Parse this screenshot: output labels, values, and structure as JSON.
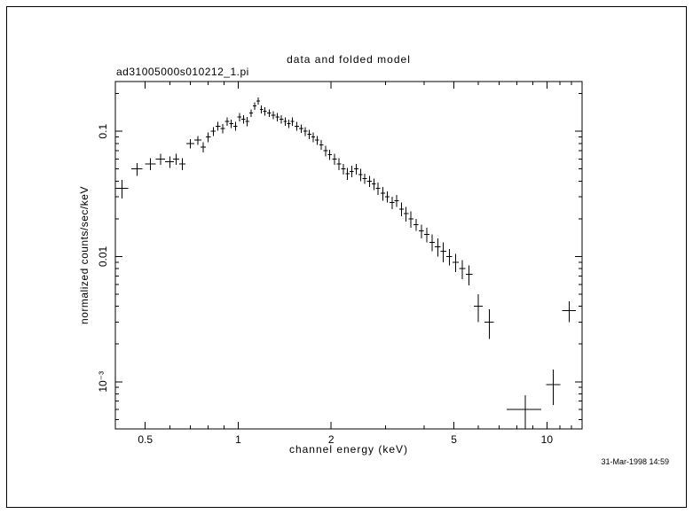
{
  "window": {
    "background": "#ffffff",
    "frame_color": "#000000",
    "ink_color": "#000000"
  },
  "chart": {
    "title": "data and folded model",
    "filename": "ad31005000s010212_1.pi",
    "xlabel": "channel energy (keV)",
    "ylabel": "normalized counts/sec/keV",
    "timestamp": "31-Mar-1998 14:59"
  },
  "chart_data": {
    "type": "scatter",
    "marker": "cross-with-error-bars",
    "color": "#000000",
    "x_scale": "log",
    "y_scale": "log",
    "xlim": [
      0.4,
      13
    ],
    "ylim": [
      0.00042,
      0.25
    ],
    "grid": false,
    "legend": "none",
    "title": "data and folded model",
    "xlabel": "channel energy (keV)",
    "ylabel": "normalized counts/sec/keV",
    "x_ticks": [
      {
        "value": 0.5,
        "label": "0.5"
      },
      {
        "value": 1,
        "label": "1"
      },
      {
        "value": 2,
        "label": "2"
      },
      {
        "value": 5,
        "label": "5"
      },
      {
        "value": 10,
        "label": "10"
      }
    ],
    "x_minor_ticks": [
      0.6,
      0.7,
      0.8,
      0.9,
      3,
      4,
      6,
      7,
      8,
      9,
      11,
      12
    ],
    "y_ticks": [
      {
        "value": 0.001,
        "label": "10⁻³"
      },
      {
        "value": 0.01,
        "label": "0.01"
      },
      {
        "value": 0.1,
        "label": "0.1"
      }
    ],
    "y_minor_ticks": [
      0.0005,
      0.0006,
      0.0007,
      0.0008,
      0.0009,
      0.002,
      0.003,
      0.004,
      0.005,
      0.006,
      0.007,
      0.008,
      0.009,
      0.02,
      0.03,
      0.04,
      0.05,
      0.06,
      0.07,
      0.08,
      0.09,
      0.2
    ],
    "series": [
      {
        "name": "ad31005000s010212_1.pi",
        "point_format": [
          "energy_keV",
          "energy_halfwidth_keV",
          "rate_counts_per_sec_keV",
          "rate_error"
        ],
        "points": [
          [
            0.42,
            0.02,
            0.035,
            0.006
          ],
          [
            0.47,
            0.02,
            0.05,
            0.006
          ],
          [
            0.52,
            0.02,
            0.055,
            0.006
          ],
          [
            0.56,
            0.02,
            0.06,
            0.006
          ],
          [
            0.6,
            0.02,
            0.057,
            0.006
          ],
          [
            0.63,
            0.015,
            0.06,
            0.006
          ],
          [
            0.66,
            0.015,
            0.055,
            0.006
          ],
          [
            0.7,
            0.02,
            0.08,
            0.007
          ],
          [
            0.74,
            0.02,
            0.085,
            0.007
          ],
          [
            0.77,
            0.015,
            0.075,
            0.007
          ],
          [
            0.8,
            0.015,
            0.09,
            0.008
          ],
          [
            0.83,
            0.015,
            0.1,
            0.008
          ],
          [
            0.86,
            0.015,
            0.11,
            0.009
          ],
          [
            0.89,
            0.015,
            0.105,
            0.009
          ],
          [
            0.92,
            0.015,
            0.12,
            0.009
          ],
          [
            0.95,
            0.015,
            0.115,
            0.009
          ],
          [
            0.98,
            0.015,
            0.11,
            0.009
          ],
          [
            1.01,
            0.015,
            0.13,
            0.01
          ],
          [
            1.04,
            0.015,
            0.125,
            0.01
          ],
          [
            1.07,
            0.015,
            0.12,
            0.01
          ],
          [
            1.1,
            0.015,
            0.14,
            0.01
          ],
          [
            1.13,
            0.015,
            0.16,
            0.011
          ],
          [
            1.16,
            0.015,
            0.175,
            0.012
          ],
          [
            1.19,
            0.015,
            0.15,
            0.011
          ],
          [
            1.22,
            0.015,
            0.145,
            0.011
          ],
          [
            1.26,
            0.02,
            0.14,
            0.01
          ],
          [
            1.3,
            0.02,
            0.135,
            0.01
          ],
          [
            1.34,
            0.02,
            0.13,
            0.01
          ],
          [
            1.38,
            0.02,
            0.125,
            0.01
          ],
          [
            1.42,
            0.02,
            0.12,
            0.009
          ],
          [
            1.46,
            0.02,
            0.115,
            0.009
          ],
          [
            1.5,
            0.02,
            0.12,
            0.009
          ],
          [
            1.55,
            0.025,
            0.11,
            0.009
          ],
          [
            1.6,
            0.025,
            0.105,
            0.008
          ],
          [
            1.65,
            0.025,
            0.1,
            0.008
          ],
          [
            1.7,
            0.025,
            0.095,
            0.008
          ],
          [
            1.75,
            0.025,
            0.09,
            0.008
          ],
          [
            1.8,
            0.025,
            0.085,
            0.007
          ],
          [
            1.86,
            0.03,
            0.078,
            0.007
          ],
          [
            1.92,
            0.03,
            0.07,
            0.007
          ],
          [
            1.98,
            0.03,
            0.065,
            0.006
          ],
          [
            2.05,
            0.035,
            0.06,
            0.006
          ],
          [
            2.12,
            0.035,
            0.055,
            0.006
          ],
          [
            2.19,
            0.035,
            0.05,
            0.005
          ],
          [
            2.26,
            0.035,
            0.046,
            0.005
          ],
          [
            2.33,
            0.035,
            0.048,
            0.005
          ],
          [
            2.41,
            0.04,
            0.05,
            0.005
          ],
          [
            2.49,
            0.04,
            0.045,
            0.005
          ],
          [
            2.57,
            0.04,
            0.042,
            0.004
          ],
          [
            2.66,
            0.045,
            0.04,
            0.004
          ],
          [
            2.75,
            0.045,
            0.038,
            0.004
          ],
          [
            2.84,
            0.045,
            0.035,
            0.004
          ],
          [
            2.94,
            0.05,
            0.032,
            0.004
          ],
          [
            3.04,
            0.05,
            0.03,
            0.003
          ],
          [
            3.15,
            0.055,
            0.027,
            0.003
          ],
          [
            3.26,
            0.055,
            0.028,
            0.003
          ],
          [
            3.38,
            0.06,
            0.024,
            0.003
          ],
          [
            3.5,
            0.06,
            0.022,
            0.003
          ],
          [
            3.63,
            0.065,
            0.02,
            0.003
          ],
          [
            3.77,
            0.07,
            0.018,
            0.002
          ],
          [
            3.92,
            0.075,
            0.016,
            0.002
          ],
          [
            4.08,
            0.08,
            0.015,
            0.002
          ],
          [
            4.25,
            0.085,
            0.013,
            0.002
          ],
          [
            4.43,
            0.09,
            0.012,
            0.002
          ],
          [
            4.62,
            0.1,
            0.011,
            0.002
          ],
          [
            4.83,
            0.105,
            0.01,
            0.0015
          ],
          [
            5.06,
            0.12,
            0.009,
            0.0015
          ],
          [
            5.32,
            0.13,
            0.008,
            0.0014
          ],
          [
            5.6,
            0.14,
            0.0072,
            0.0013
          ],
          [
            6.0,
            0.2,
            0.004,
            0.001
          ],
          [
            6.5,
            0.22,
            0.003,
            0.0008
          ],
          [
            8.5,
            1.1,
            0.0006,
            0.00018
          ],
          [
            10.5,
            0.55,
            0.00095,
            0.0003
          ],
          [
            11.8,
            0.6,
            0.0037,
            0.0007
          ]
        ]
      }
    ],
    "footer": "31-Mar-1998 14:59"
  }
}
